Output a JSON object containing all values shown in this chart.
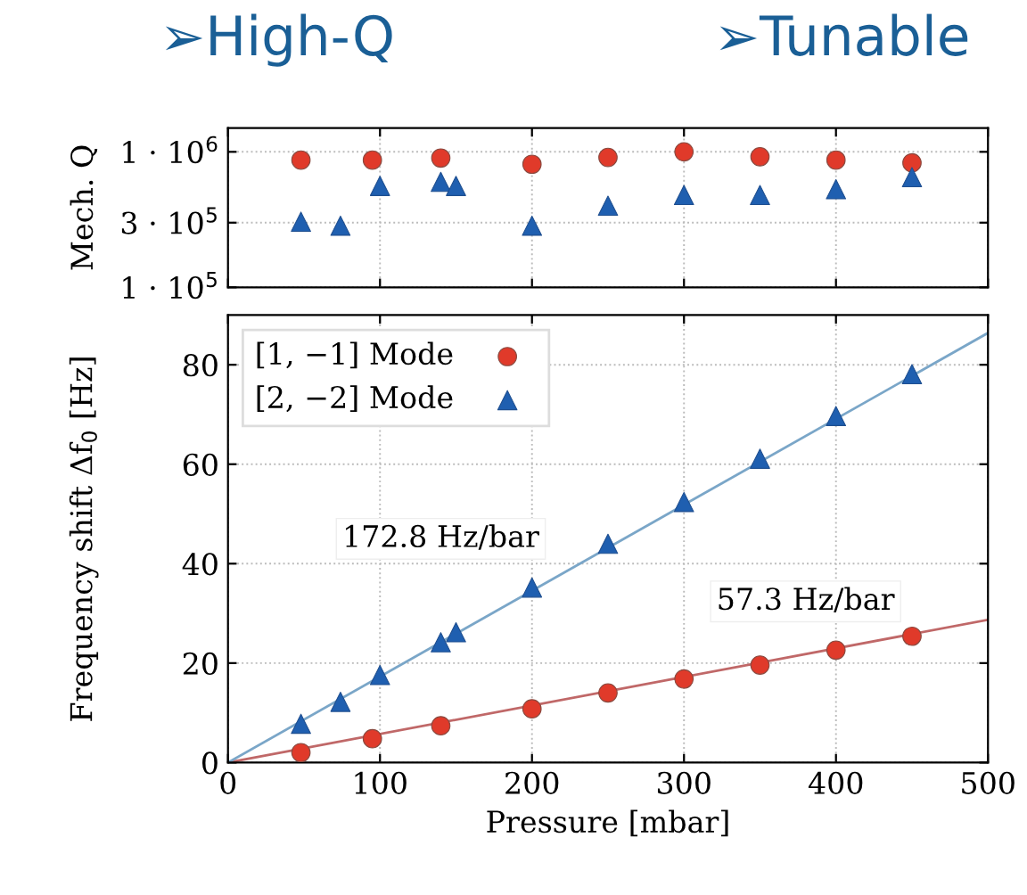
{
  "chart_data": [
    {
      "type": "scatter",
      "annotations": [
        "➢High-Q",
        "➢Tunable"
      ],
      "ylabel": "Mech. Q",
      "log": "y",
      "xlim": [
        0,
        500
      ],
      "xticks": [
        0,
        100,
        200,
        300,
        400,
        500
      ],
      "ylim": [
        100000,
        1500000
      ],
      "yticks": [
        {
          "value": 100000,
          "label": "1 · 10$^{5}$"
        },
        {
          "value": 300000,
          "label": "3 · 10$^{5}$"
        },
        {
          "value": 1000000,
          "label": "1 · 10$^{6}$"
        }
      ],
      "tick_labels": "y",
      "grid": true,
      "legend": false,
      "series": [
        {
          "color": "#e03a2a",
          "marker": "circle",
          "x": [
            48,
            95,
            140,
            200,
            250,
            300,
            350,
            400,
            450
          ],
          "values": [
            870000,
            870000,
            900000,
            810000,
            910000,
            1000000,
            920000,
            870000,
            830000
          ]
        },
        {
          "color": "#1f5fb0",
          "marker": "triangle",
          "x": [
            48,
            74,
            100,
            140,
            150,
            200,
            250,
            300,
            350,
            400,
            450
          ],
          "values": [
            305000,
            285000,
            560000,
            600000,
            560000,
            285000,
            400000,
            480000,
            480000,
            530000,
            650000
          ]
        }
      ]
    },
    {
      "type": "scatter",
      "xlabel": "Pressure [mbar]",
      "ylabel": "Frequency shift Δf$_{0}$ [Hz]",
      "xlim": [
        0,
        500
      ],
      "xticks": [
        0,
        100,
        200,
        300,
        400,
        500
      ],
      "ylim": [
        0,
        90
      ],
      "yticks": [
        0,
        20,
        40,
        60,
        80
      ],
      "grid": true,
      "legend": "top left",
      "annotations": [
        "172.8 Hz/bar",
        "57.3 Hz/bar"
      ],
      "series": [
        {
          "name": "[1, −1] Mode",
          "color": "#e03a2a",
          "marker": "circle",
          "x": [
            48,
            95,
            140,
            200,
            250,
            300,
            350,
            400,
            450
          ],
          "values": [
            2.0,
            4.8,
            7.4,
            10.8,
            14.0,
            16.8,
            19.6,
            22.6,
            25.4
          ]
        },
        {
          "name": "[2, −2] Mode",
          "color": "#1f5fb0",
          "marker": "triangle",
          "x": [
            48,
            74,
            100,
            140,
            150,
            200,
            250,
            300,
            350,
            400,
            450
          ],
          "values": [
            7.8,
            12.2,
            17.6,
            24.2,
            26.2,
            35.2,
            44.0,
            52.4,
            61.1,
            69.7,
            78.1
          ]
        },
        {
          "type": "line",
          "color": "#c06868",
          "marker": "none",
          "x": [
            0,
            500
          ],
          "values": [
            0,
            28.7
          ]
        },
        {
          "type": "line",
          "color": "#7aa6c8",
          "marker": "none",
          "x": [
            0,
            500
          ],
          "values": [
            0,
            86.4
          ]
        }
      ]
    }
  ]
}
